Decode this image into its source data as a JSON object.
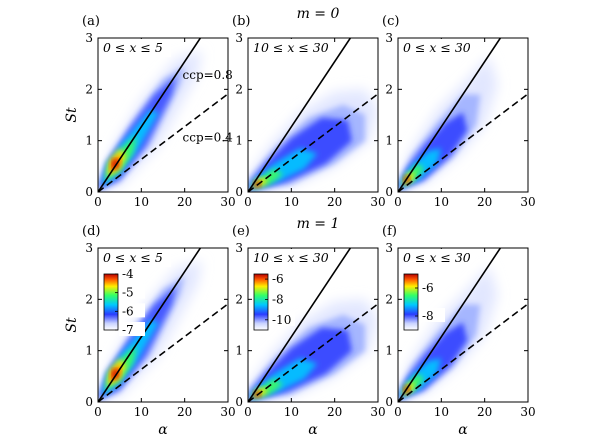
{
  "figure": {
    "row_titles": [
      "m = 0",
      "m = 1"
    ],
    "xlabel": "α",
    "ylabel": "St",
    "x_ticks": [
      0,
      10,
      20,
      30
    ],
    "y_ticks": [
      0,
      1,
      2,
      3
    ],
    "xlim": [
      0,
      30
    ],
    "ylim": [
      0,
      3
    ]
  },
  "chart_data": [
    {
      "type": "heatmap",
      "panel": "(a)",
      "row": 0,
      "col": 0,
      "range_label": "0 ≤ x ≤ 5",
      "xlabel": "",
      "ylabel": "St",
      "xlim": [
        0,
        30
      ],
      "ylim": [
        0,
        3
      ],
      "reference_lines": [
        {
          "label": "ccp=0.8",
          "style": "solid",
          "slope": 0.127
        },
        {
          "label": "ccp=0.4",
          "style": "dashed",
          "slope": 0.0637
        }
      ],
      "density_peak": {
        "alpha": 4,
        "St": 0.55
      },
      "annotations": [
        "ccp=0.8",
        "ccp=0.4"
      ],
      "colorbar": null
    },
    {
      "type": "heatmap",
      "panel": "(b)",
      "row": 0,
      "col": 1,
      "range_label": "10 ≤ x ≤ 30",
      "xlabel": "",
      "ylabel": "",
      "xlim": [
        0,
        30
      ],
      "ylim": [
        0,
        3
      ],
      "reference_lines": [
        {
          "label": "ccp=0.8",
          "style": "solid",
          "slope": 0.127
        },
        {
          "label": "ccp=0.4",
          "style": "dashed",
          "slope": 0.0637
        }
      ],
      "density_peak": {
        "alpha": 2.5,
        "St": 0.2
      },
      "colorbar": null
    },
    {
      "type": "heatmap",
      "panel": "(c)",
      "row": 0,
      "col": 2,
      "range_label": "0 ≤ x ≤ 30",
      "xlabel": "",
      "ylabel": "",
      "xlim": [
        0,
        30
      ],
      "ylim": [
        0,
        3
      ],
      "reference_lines": [
        {
          "label": "ccp=0.8",
          "style": "solid",
          "slope": 0.127
        },
        {
          "label": "ccp=0.4",
          "style": "dashed",
          "slope": 0.0637
        }
      ],
      "density_peak": {
        "alpha": 2.5,
        "St": 0.3
      },
      "colorbar": null
    },
    {
      "type": "heatmap",
      "panel": "(d)",
      "row": 1,
      "col": 0,
      "range_label": "0 ≤ x ≤ 5",
      "xlabel": "α",
      "ylabel": "St",
      "xlim": [
        0,
        30
      ],
      "ylim": [
        0,
        3
      ],
      "reference_lines": [
        {
          "label": "ccp=0.8",
          "style": "solid",
          "slope": 0.127
        },
        {
          "label": "ccp=0.4",
          "style": "dashed",
          "slope": 0.0637
        }
      ],
      "density_peak": {
        "alpha": 4,
        "St": 0.55
      },
      "colorbar": {
        "ticks": [
          -4,
          -5,
          -6,
          -7
        ],
        "min": -7,
        "max": -4
      }
    },
    {
      "type": "heatmap",
      "panel": "(e)",
      "row": 1,
      "col": 1,
      "range_label": "10 ≤ x ≤ 30",
      "xlabel": "α",
      "ylabel": "",
      "xlim": [
        0,
        30
      ],
      "ylim": [
        0,
        3
      ],
      "reference_lines": [
        {
          "label": "ccp=0.8",
          "style": "solid",
          "slope": 0.127
        },
        {
          "label": "ccp=0.4",
          "style": "dashed",
          "slope": 0.0637
        }
      ],
      "density_peak": {
        "alpha": 2.5,
        "St": 0.2
      },
      "colorbar": {
        "ticks": [
          -6,
          -8,
          -10
        ],
        "min": -11,
        "max": -5.5
      }
    },
    {
      "type": "heatmap",
      "panel": "(f)",
      "row": 1,
      "col": 2,
      "range_label": "0 ≤ x ≤ 30",
      "xlabel": "α",
      "ylabel": "",
      "xlim": [
        0,
        30
      ],
      "ylim": [
        0,
        3
      ],
      "reference_lines": [
        {
          "label": "ccp=0.8",
          "style": "solid",
          "slope": 0.127
        },
        {
          "label": "ccp=0.4",
          "style": "dashed",
          "slope": 0.0637
        }
      ],
      "density_peak": {
        "alpha": 2.5,
        "St": 0.3
      },
      "colorbar": {
        "ticks": [
          -6,
          -8
        ],
        "min": -9,
        "max": -5
      }
    }
  ]
}
